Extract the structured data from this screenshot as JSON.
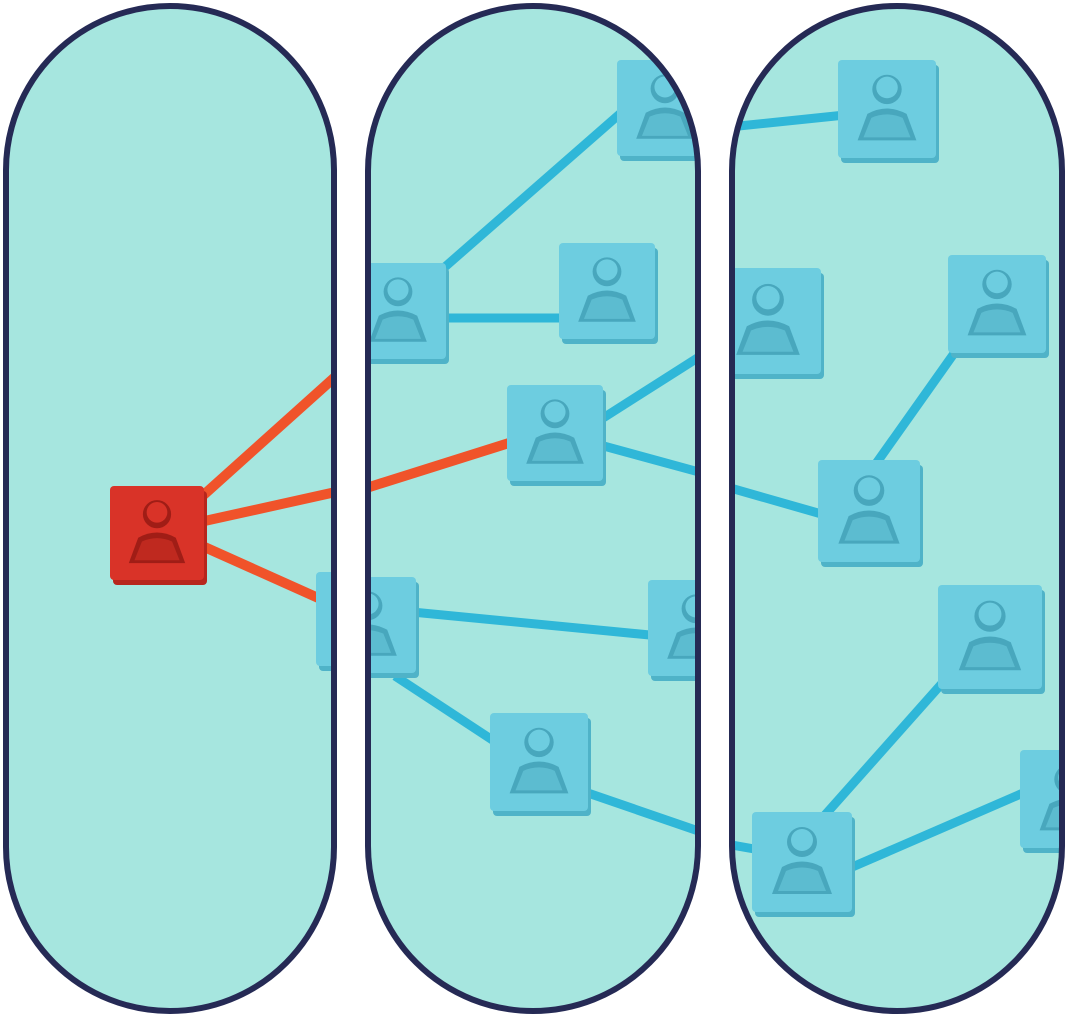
{
  "image": {
    "description_free": true
  },
  "colors": {
    "background": "#ffffff",
    "paper": "#a6e6df",
    "paper_shade": "#9edcd5",
    "frame_stroke": "#252a55",
    "tile_blue": "#6dcde0",
    "tile_blue_dark": "#4fb3c8",
    "tile_blue_cut": "#48a7bd",
    "tile_red": "#d93328",
    "tile_red_dark": "#b7261d",
    "tile_red_cut": "#a01d16",
    "line_blue": "#2fb7d8",
    "line_red": "#f0532a"
  },
  "icons": {
    "frame": "pill-frame",
    "node": "person-tile-icon",
    "hub": "person-tile-icon-red"
  },
  "panels": [
    "left-panel",
    "middle-panel",
    "right-panel"
  ]
}
